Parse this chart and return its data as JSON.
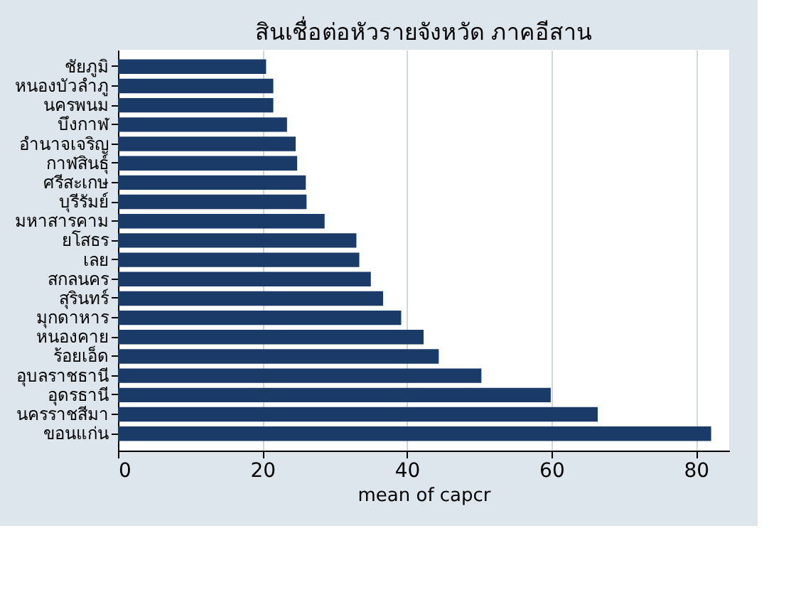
{
  "chart_data": {
    "type": "bar",
    "orientation": "horizontal",
    "title": "สินเชื่อต่อหัวรายจังหวัด ภาคอีสาน",
    "xlabel": "mean of capcr",
    "categories": [
      "ชัยภูมิ",
      "หนองบัวลำภู",
      "นครพนม",
      "บึงกาฬ",
      "อำนาจเจริญ",
      "กาฬสินธุ์",
      "ศรีสะเกษ",
      "บุรีรัมย์",
      "มหาสารคาม",
      "ยโสธร",
      "เลย",
      "สกลนคร",
      "สุรินทร์",
      "มุกดาหาร",
      "หนองคาย",
      "ร้อยเอ็ด",
      "อุบลราชธานี",
      "อุดรธานี",
      "นครราชสีมา",
      "ขอนแก่น"
    ],
    "values": [
      20.5,
      21.5,
      21.5,
      23.4,
      24.6,
      24.8,
      26,
      26.1,
      28.6,
      33,
      33.4,
      35,
      36.7,
      39.2,
      42.3,
      44.4,
      50.3,
      59.9,
      66.4,
      82.1
    ],
    "color": "#1a3b67",
    "xlim": [
      0,
      84.6
    ],
    "xticks": [
      0,
      20,
      40,
      60,
      80
    ],
    "grid": "x"
  }
}
